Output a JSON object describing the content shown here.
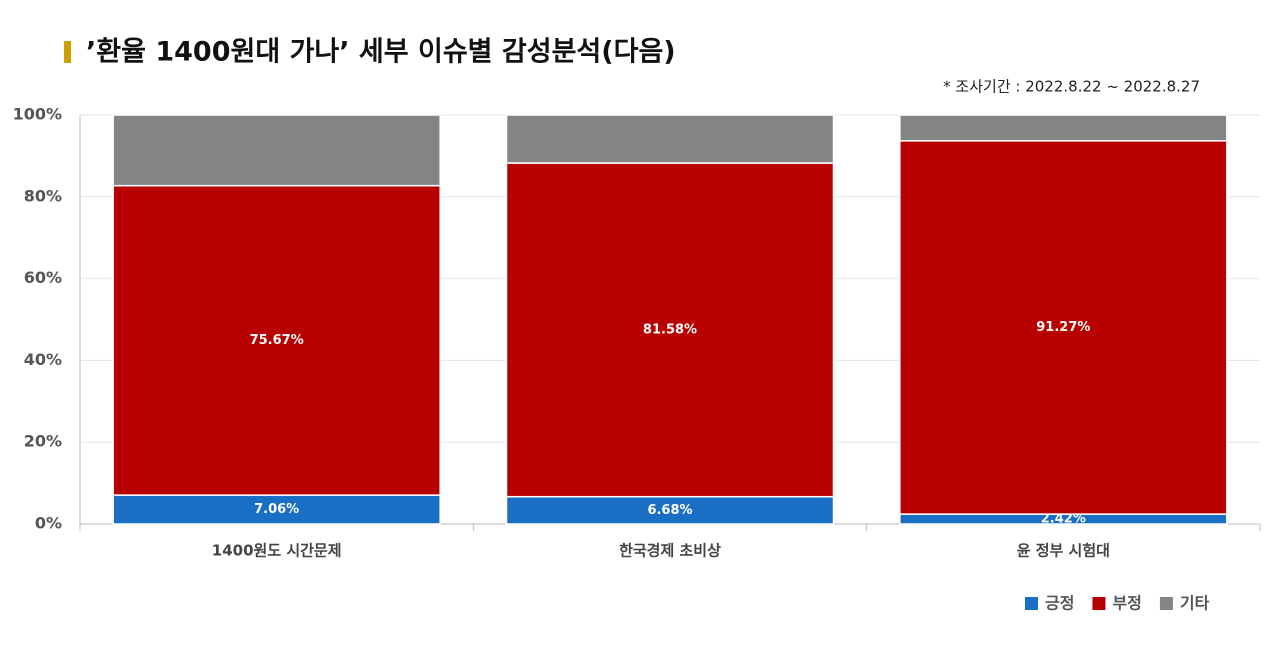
{
  "chart_data": {
    "type": "stacked_bar",
    "title": "’환율 1400원대 가나’ 세부 이슈별 감성분석(다음)",
    "subtitle": "* 조사기간 : 2022.8.22 ~ 2022.8.27",
    "categories": [
      "1400원도 시간문제",
      "한국경제 초비상",
      "윤 정부 시험대"
    ],
    "series": [
      {
        "name": "긍정",
        "color": "#1a6fc4",
        "values": [
          7.06,
          6.68,
          2.42
        ],
        "value_labels": [
          "7.06%",
          "6.68%",
          "2.42%"
        ]
      },
      {
        "name": "부정",
        "color": "#b80000",
        "values": [
          75.67,
          81.58,
          91.27
        ],
        "value_labels": [
          "75.67%",
          "81.58%",
          "91.27%"
        ]
      },
      {
        "name": "기타",
        "color": "#848484",
        "values": [
          17.27,
          11.74,
          6.31
        ]
      }
    ],
    "ylim": [
      0,
      100
    ],
    "yticks": [
      {
        "value": 0,
        "label": "0%"
      },
      {
        "value": 20,
        "label": "20%"
      },
      {
        "value": 40,
        "label": "40%"
      },
      {
        "value": 60,
        "label": "60%"
      },
      {
        "value": 80,
        "label": "80%"
      },
      {
        "value": 100,
        "label": "100%"
      }
    ],
    "grid": true
  }
}
